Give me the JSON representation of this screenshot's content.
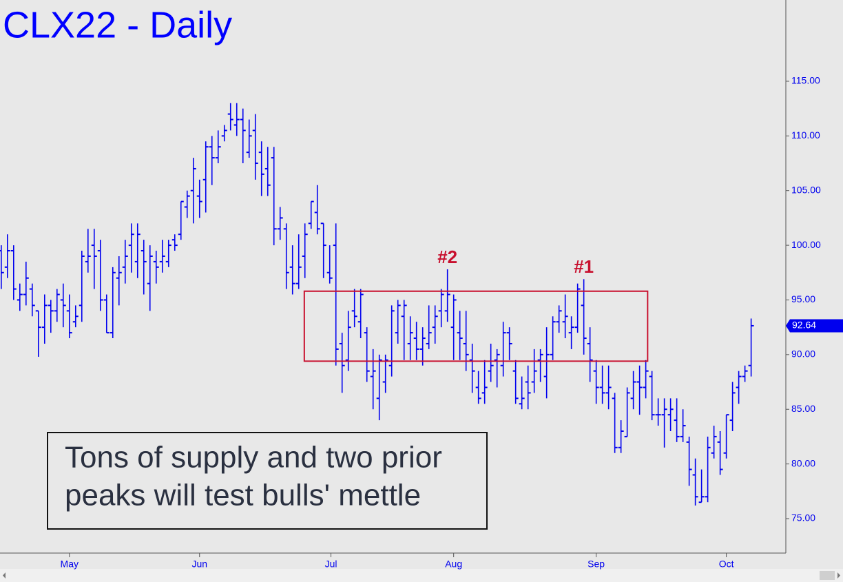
{
  "chart_data": {
    "type": "ohlc",
    "title": "CLX22 - Daily",
    "color": "#0000ee",
    "annotation_color": "#c8102e",
    "xlim": [
      -0.2,
      126.6
    ],
    "xticks": [
      {
        "value": 11,
        "label": "May"
      },
      {
        "value": 32,
        "label": "Jun"
      },
      {
        "value": 53.2,
        "label": "Jul"
      },
      {
        "value": 73,
        "label": "Aug"
      },
      {
        "value": 96,
        "label": "Sep"
      },
      {
        "value": 117,
        "label": "Oct"
      }
    ],
    "ylim": [
      71.85,
      122.43
    ],
    "yticks": [
      {
        "value": 75,
        "label": "75.00"
      },
      {
        "value": 80,
        "label": "80.00"
      },
      {
        "value": 85,
        "label": "85.00"
      },
      {
        "value": 90,
        "label": "90.00"
      },
      {
        "value": 95,
        "label": "95.00"
      },
      {
        "value": 100,
        "label": "100.00"
      },
      {
        "value": 105,
        "label": "105.00"
      },
      {
        "value": 110,
        "label": "110.00"
      },
      {
        "value": 115,
        "label": "115.00"
      }
    ],
    "open": [
      99.5,
      98.0,
      99.5,
      95.0,
      95.5,
      96.0,
      94.0,
      92.5,
      94.5,
      94.0,
      95.0,
      94.0,
      93.0,
      94.5,
      98.5,
      100.0,
      99.5,
      95.0,
      92.0,
      97.0,
      98.0,
      100.0,
      98.5,
      99.5,
      96.5,
      98.5,
      98.5,
      98.5,
      100.5,
      101.0,
      103.5,
      105.0,
      104.5,
      106.0,
      109.0,
      108.0,
      110.0,
      112.0,
      111.0,
      111.5,
      108.5,
      110.5,
      108.5,
      107.0,
      108.0,
      101.5,
      101.5,
      98.0,
      96.5,
      99.0,
      102.0,
      103.0,
      102.0,
      97.5,
      100.0,
      91.0,
      89.5,
      94.0,
      93.0,
      92.0,
      88.0,
      86.0,
      87.5,
      89.0,
      92.0,
      93.5,
      91.0,
      91.5,
      90.5,
      91.0,
      92.5,
      94.0,
      94.0,
      92.5,
      92.0,
      91.0,
      89.5,
      87.0,
      86.5,
      88.5,
      89.5,
      89.0,
      92.0,
      88.5,
      85.5,
      87.5,
      87.5,
      89.5,
      88.0,
      90.0,
      93.0,
      93.0,
      92.0,
      92.5,
      94.5,
      91.0,
      88.5,
      87.0,
      86.5,
      86.0,
      81.5,
      82.5,
      86.0,
      87.5,
      87.0,
      88.0,
      84.5,
      84.5,
      84.5,
      84.0,
      82.5,
      82.0,
      79.0,
      76.5,
      77.0,
      81.0,
      82.0,
      81.0,
      84.0,
      87.0,
      88.0,
      89.0
    ],
    "high": [
      100.0,
      101.0,
      100.0,
      96.5,
      98.5,
      96.5,
      94.0,
      95.5,
      95.0,
      96.0,
      96.5,
      95.5,
      94.5,
      99.5,
      101.5,
      101.5,
      100.5,
      95.5,
      98.0,
      99.0,
      100.5,
      102.0,
      102.0,
      100.5,
      100.0,
      99.5,
      100.5,
      100.5,
      101.0,
      104.0,
      105.0,
      108.0,
      106.0,
      109.5,
      110.0,
      110.5,
      111.0,
      113.0,
      113.0,
      112.5,
      111.5,
      112.0,
      109.5,
      109.0,
      109.0,
      103.5,
      102.0,
      100.0,
      101.0,
      102.0,
      104.0,
      105.5,
      102.0,
      100.0,
      102.0,
      92.0,
      94.0,
      96.0,
      96.0,
      92.5,
      90.5,
      90.0,
      90.0,
      94.5,
      95.0,
      95.0,
      93.5,
      93.0,
      92.5,
      94.5,
      94.5,
      96.0,
      97.8,
      95.5,
      94.0,
      94.0,
      91.0,
      88.5,
      89.5,
      91.0,
      90.5,
      93.0,
      92.5,
      89.5,
      88.0,
      89.0,
      90.5,
      90.5,
      92.5,
      93.5,
      94.5,
      95.5,
      93.5,
      96.5,
      96.9,
      92.5,
      89.5,
      89.0,
      89.0,
      86.5,
      84.0,
      87.0,
      88.5,
      89.0,
      89.5,
      88.5,
      86.0,
      86.0,
      86.0,
      86.0,
      85.0,
      82.5,
      80.5,
      79.5,
      82.5,
      83.5,
      83.0,
      84.5,
      87.5,
      88.5,
      89.0,
      93.3
    ],
    "low": [
      96.0,
      97.0,
      95.0,
      94.0,
      94.5,
      93.5,
      89.8,
      91.0,
      92.0,
      93.0,
      92.5,
      91.5,
      92.5,
      93.0,
      97.5,
      96.0,
      94.0,
      92.0,
      91.5,
      94.5,
      96.5,
      97.5,
      97.0,
      95.5,
      94.0,
      96.5,
      97.5,
      98.0,
      99.5,
      100.5,
      102.5,
      102.0,
      102.5,
      103.0,
      105.5,
      107.5,
      109.5,
      110.5,
      110.0,
      107.5,
      108.0,
      106.0,
      104.5,
      104.5,
      100.0,
      100.5,
      96.0,
      95.5,
      96.0,
      97.0,
      101.5,
      101.0,
      97.0,
      96.5,
      89.0,
      86.5,
      88.5,
      92.5,
      91.5,
      87.5,
      85.0,
      84.0,
      86.5,
      88.0,
      91.0,
      89.5,
      89.5,
      89.5,
      89.0,
      90.5,
      91.0,
      92.5,
      93.0,
      89.5,
      89.5,
      88.5,
      86.5,
      85.5,
      85.5,
      87.5,
      87.0,
      88.0,
      89.5,
      85.5,
      85.0,
      85.0,
      86.5,
      87.5,
      86.0,
      89.5,
      92.0,
      91.5,
      90.5,
      92.0,
      90.0,
      87.5,
      85.5,
      85.5,
      85.0,
      81.0,
      81.0,
      82.5,
      85.0,
      84.5,
      86.0,
      84.0,
      83.5,
      81.5,
      83.0,
      82.0,
      82.0,
      78.0,
      76.2,
      76.5,
      76.5,
      80.5,
      79.0,
      80.5,
      83.0,
      85.5,
      87.5,
      88.0
    ],
    "close": [
      97.5,
      99.5,
      96.0,
      95.5,
      97.0,
      94.5,
      92.5,
      94.5,
      94.0,
      95.5,
      94.5,
      92.0,
      93.5,
      99.0,
      99.0,
      99.0,
      95.0,
      92.0,
      97.5,
      97.5,
      99.0,
      101.0,
      101.0,
      98.5,
      99.0,
      98.0,
      99.0,
      100.0,
      100.0,
      104.0,
      104.5,
      107.0,
      104.0,
      109.0,
      108.0,
      109.0,
      110.5,
      111.5,
      111.5,
      110.5,
      110.0,
      107.5,
      106.5,
      105.5,
      101.5,
      102.5,
      97.5,
      96.5,
      98.0,
      101.0,
      104.0,
      101.5,
      100.0,
      97.0,
      90.5,
      89.0,
      92.5,
      93.5,
      95.5,
      88.5,
      88.5,
      89.5,
      89.5,
      94.0,
      94.5,
      94.5,
      92.0,
      90.5,
      91.5,
      92.0,
      93.5,
      95.5,
      95.5,
      95.0,
      91.5,
      90.0,
      88.5,
      86.0,
      87.0,
      89.0,
      90.0,
      92.0,
      91.0,
      86.0,
      86.0,
      86.5,
      88.5,
      90.0,
      90.0,
      93.0,
      94.0,
      93.5,
      92.5,
      96.0,
      91.5,
      89.5,
      87.0,
      86.5,
      87.0,
      81.5,
      83.0,
      86.5,
      87.5,
      87.0,
      88.5,
      84.5,
      84.5,
      85.0,
      85.0,
      82.5,
      83.5,
      79.5,
      77.0,
      77.0,
      81.5,
      82.5,
      79.5,
      84.5,
      86.5,
      88.0,
      88.5,
      92.64
    ],
    "last_price": 92.64,
    "zone": {
      "x": [
        48.9,
        104.3
      ],
      "y": [
        89.4,
        95.8
      ]
    },
    "annotations": [
      {
        "text": "#2",
        "bar": 72
      },
      {
        "text": "#1",
        "bar": 94
      }
    ],
    "text_box": [
      "Tons of supply and two prior",
      "peaks will test bulls' mettle"
    ]
  }
}
